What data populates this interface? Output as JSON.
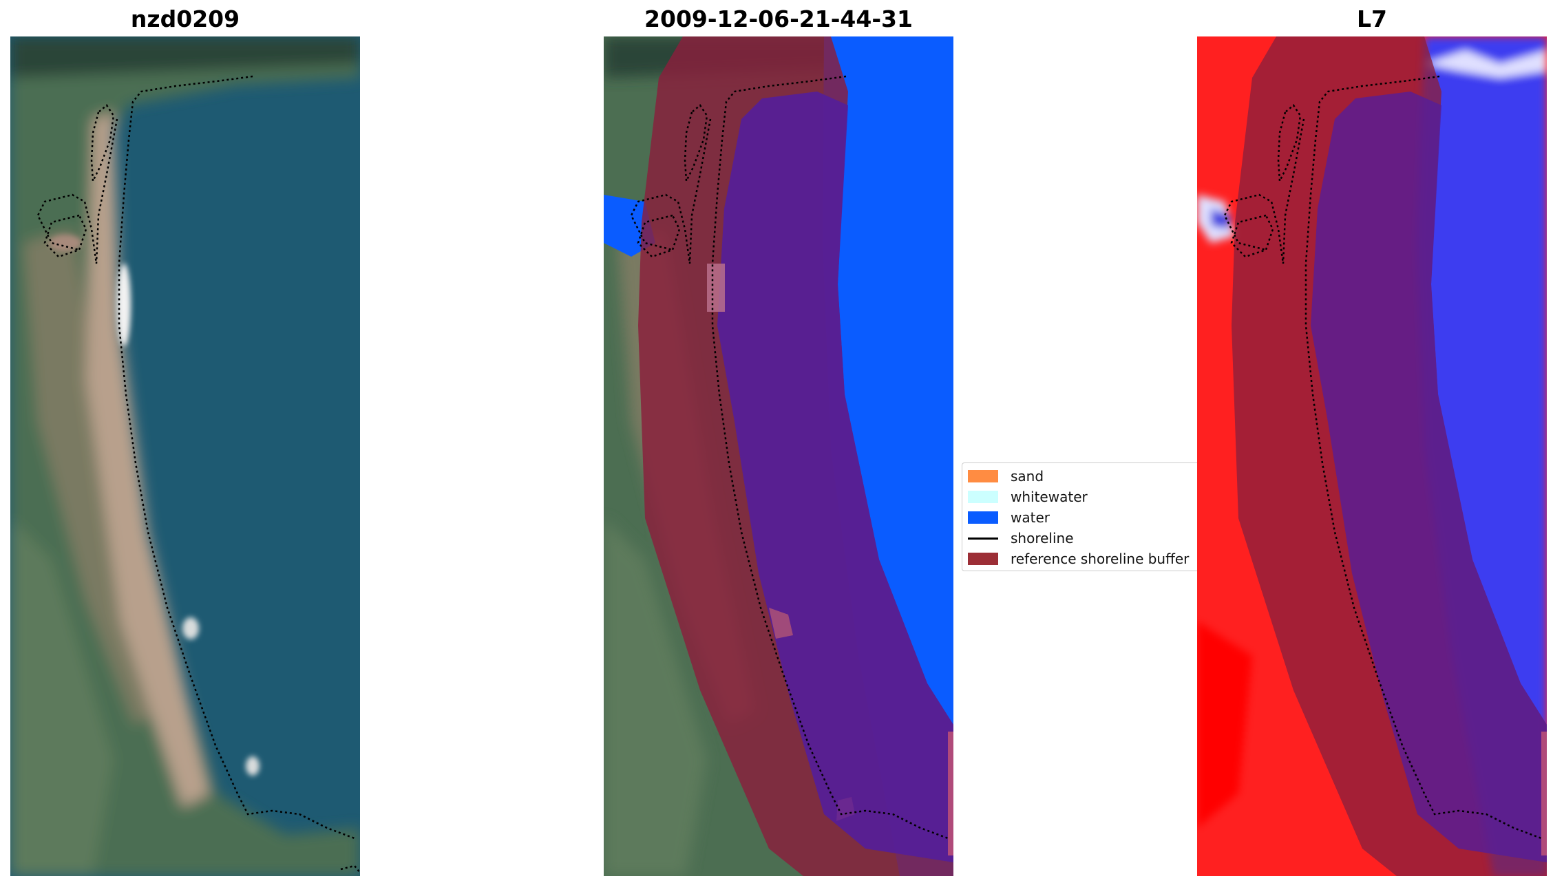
{
  "panels": [
    {
      "title": "nzd0209"
    },
    {
      "title": "2009-12-06-21-44-31"
    },
    {
      "title": "L7"
    }
  ],
  "legend": {
    "entries": [
      {
        "label": "sand",
        "color": "#ff8c42",
        "kind": "patch"
      },
      {
        "label": "whitewater",
        "color": "#ccffff",
        "kind": "patch"
      },
      {
        "label": "water",
        "color": "#0a5cff",
        "kind": "patch"
      },
      {
        "label": "shoreline",
        "color": "#000000",
        "kind": "line"
      },
      {
        "label": "reference shoreline buffer",
        "color": "#9c2e36",
        "kind": "patch"
      }
    ]
  },
  "colors": {
    "rgb_water": "#1e5a72",
    "rgb_land": "#4c6e52",
    "rgb_sand": "#b8a08c",
    "buffer": "#8a1f3c",
    "water_class": "#0a5cff",
    "buffer_over_water": "#541e9a",
    "index_land": "#ff2020",
    "index_water": "#3c3cf0"
  }
}
